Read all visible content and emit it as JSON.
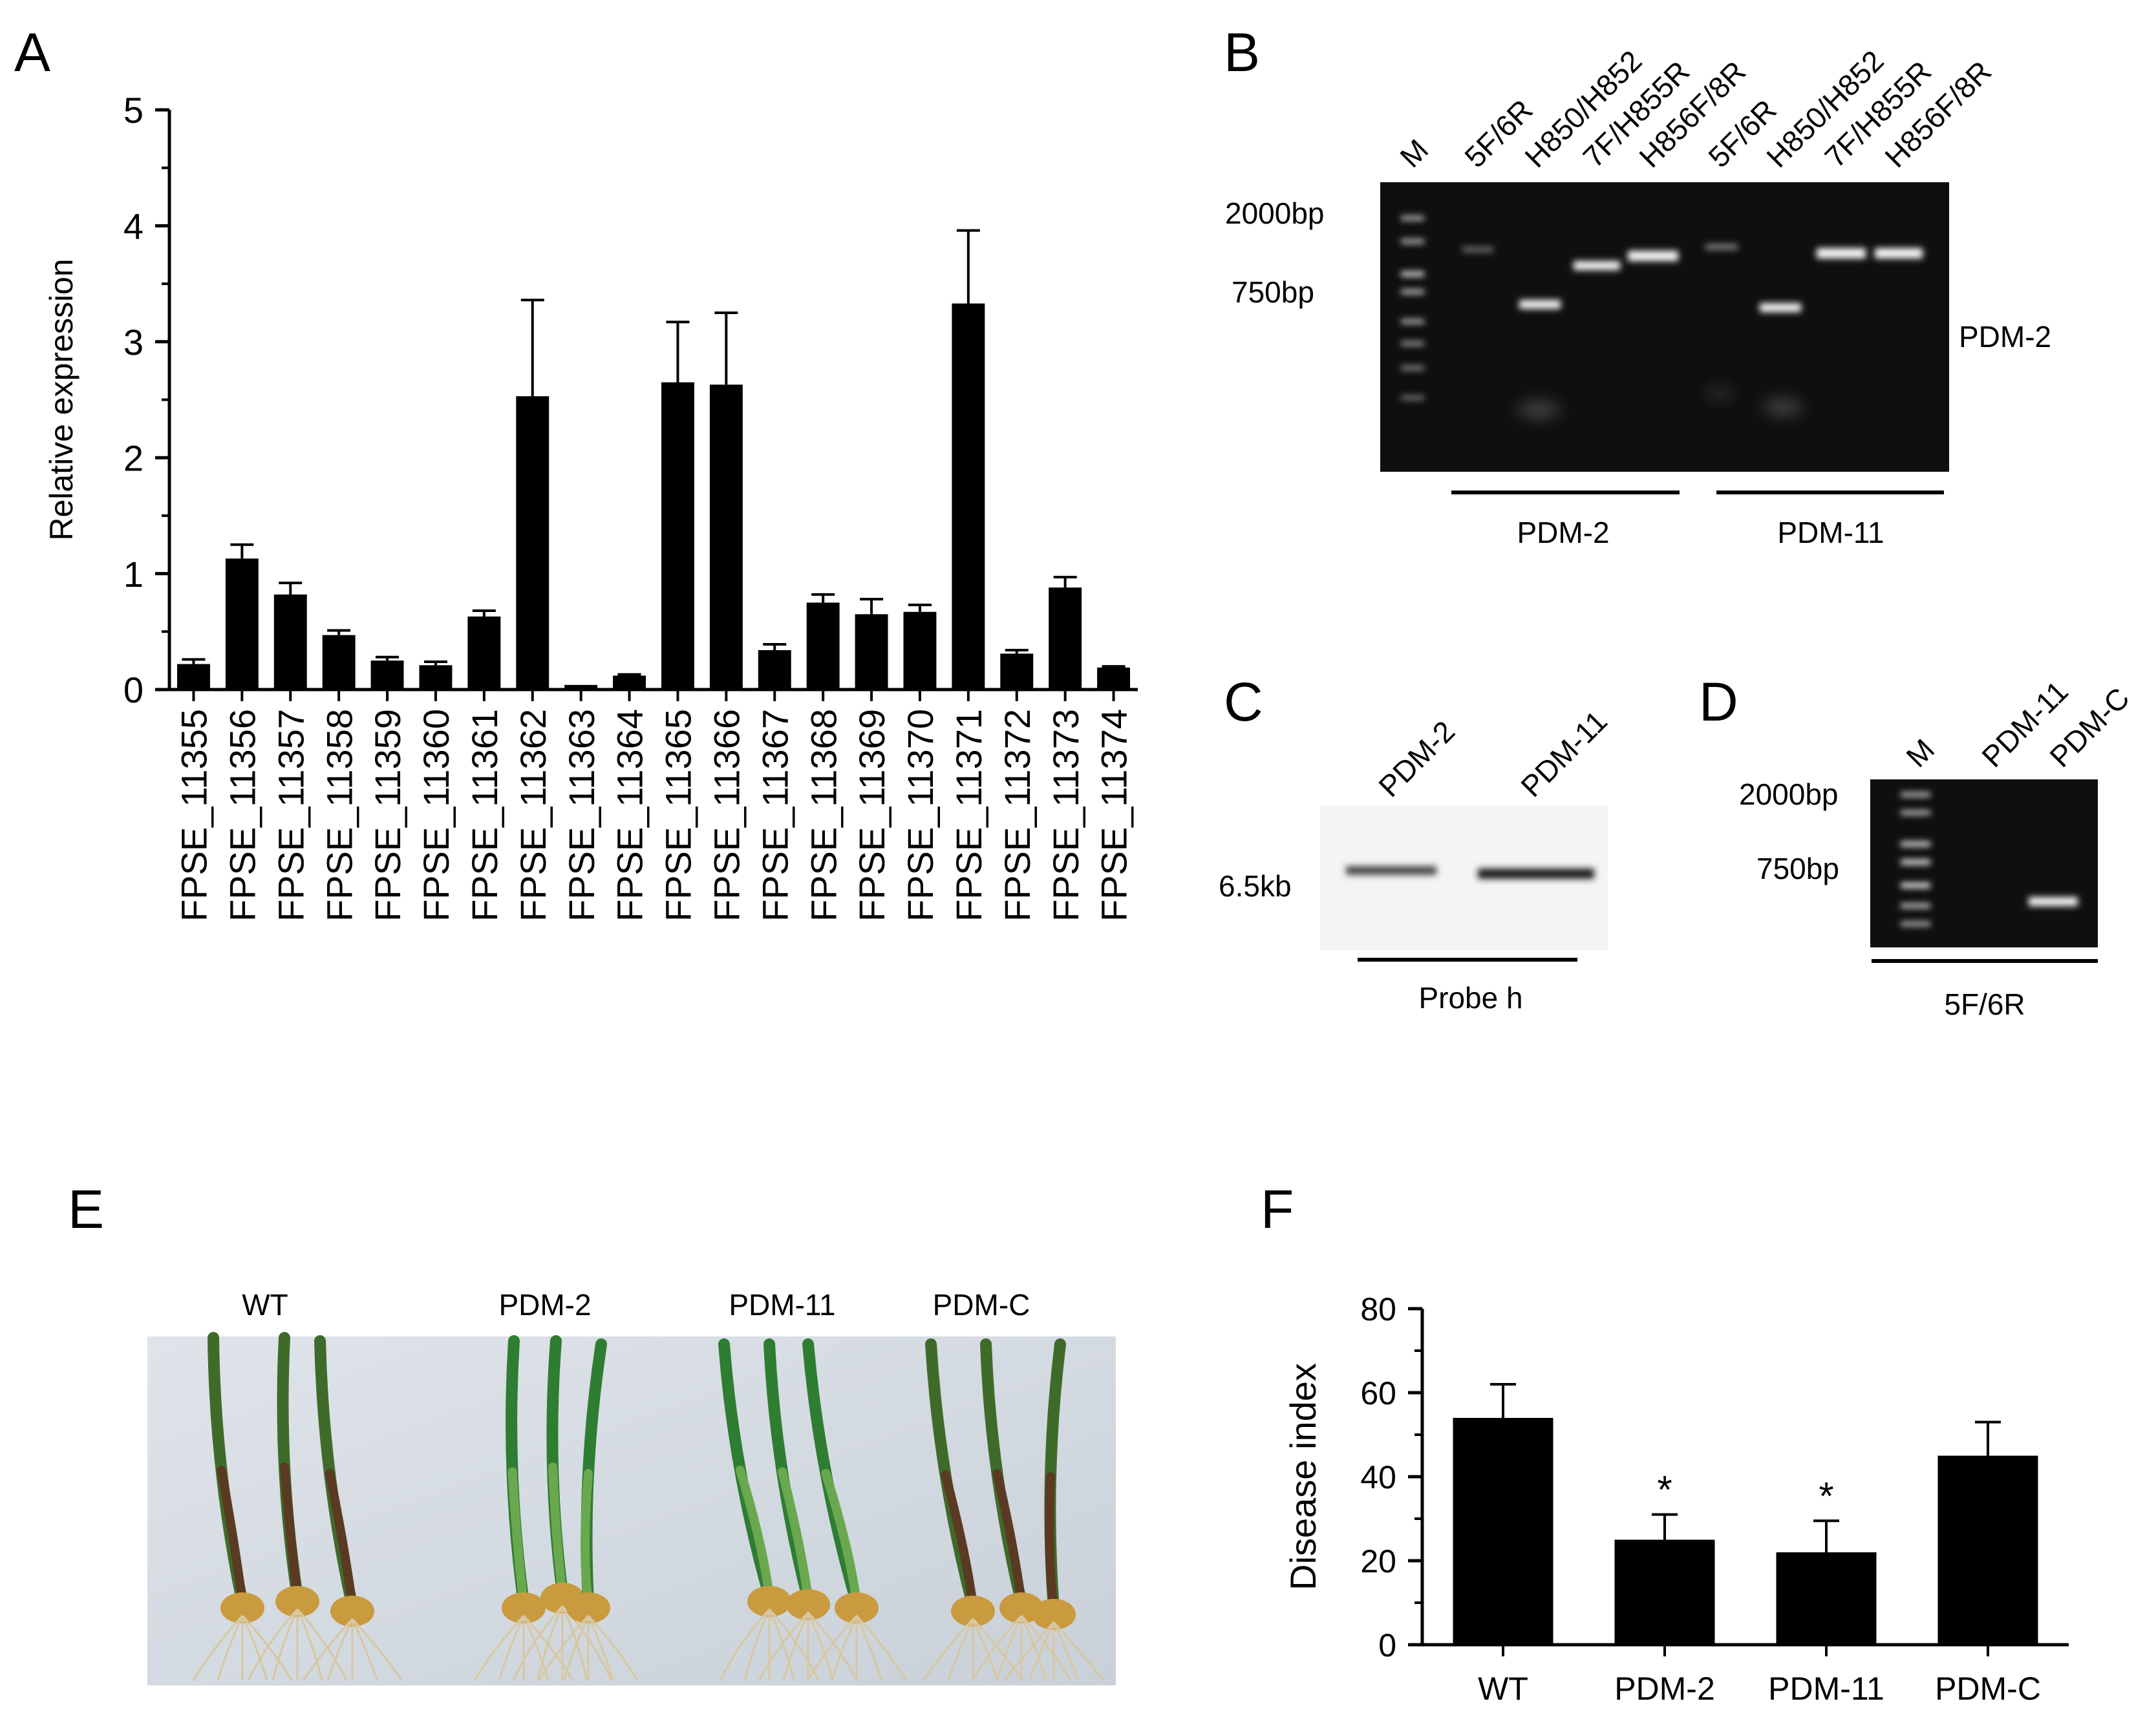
{
  "panels": {
    "A": {
      "letter": "A"
    },
    "B": {
      "letter": "B",
      "lane_labels": [
        "M",
        "5F/6R",
        "H850/H852",
        "7F/H855R",
        "H856F/8R",
        "5F/6R",
        "H850/H852",
        "7F/H855R",
        "H856F/8R"
      ],
      "markers": [
        "2000bp",
        "750bp"
      ],
      "side_label": "PDM-2",
      "group_labels": [
        "PDM-2",
        "PDM-11"
      ]
    },
    "C": {
      "letter": "C",
      "lane_labels": [
        "PDM-2",
        "PDM-11"
      ],
      "size_label": "6.5kb",
      "probe_label": "Probe h"
    },
    "D": {
      "letter": "D",
      "lane_labels": [
        "M",
        "PDM-11",
        "PDM-C"
      ],
      "markers": [
        "2000bp",
        "750bp"
      ],
      "primer_label": "5F/6R"
    },
    "E": {
      "letter": "E",
      "group_labels": [
        "WT",
        "PDM-2",
        "PDM-11",
        "PDM-C"
      ]
    },
    "F": {
      "letter": "F"
    }
  },
  "chart_data": [
    {
      "type": "bar",
      "panel": "A",
      "ylabel": "Relative expression",
      "ylim": [
        0,
        5
      ],
      "yticks": [
        0,
        1,
        2,
        3,
        4,
        5
      ],
      "categories": [
        "FPSE_11355",
        "FPSE_11356",
        "FPSE_11357",
        "FPSE_11358",
        "FPSE_11359",
        "FPSE_11360",
        "FPSE_11361",
        "FPSE_11362",
        "FPSE_11363",
        "FPSE_11364",
        "FPSE_11365",
        "FPSE_11366",
        "FPSE_11367",
        "FPSE_11368",
        "FPSE_11369",
        "FPSE_11370",
        "FPSE_11371",
        "FPSE_11372",
        "FPSE_11373",
        "FPSE_11374"
      ],
      "values": [
        0.22,
        1.13,
        0.82,
        0.47,
        0.25,
        0.21,
        0.63,
        2.53,
        0.04,
        0.12,
        2.65,
        2.63,
        0.34,
        0.75,
        0.65,
        0.67,
        3.33,
        0.31,
        0.88,
        0.19
      ],
      "errors": [
        0.04,
        0.12,
        0.1,
        0.04,
        0.03,
        0.03,
        0.05,
        0.83,
        0.0,
        0.01,
        0.52,
        0.62,
        0.05,
        0.07,
        0.13,
        0.06,
        0.63,
        0.03,
        0.09,
        0.01
      ],
      "bar_color": "#000000"
    },
    {
      "type": "bar",
      "panel": "F",
      "ylabel": "Disease index",
      "ylim": [
        0,
        80
      ],
      "yticks": [
        0,
        20,
        40,
        60,
        80
      ],
      "categories": [
        "WT",
        "PDM-2",
        "PDM-11",
        "PDM-C"
      ],
      "values": [
        54,
        25,
        22,
        45
      ],
      "errors": [
        8,
        6,
        7.5,
        8
      ],
      "annotations": [
        "",
        "*",
        "*",
        ""
      ],
      "bar_color": "#000000"
    }
  ]
}
